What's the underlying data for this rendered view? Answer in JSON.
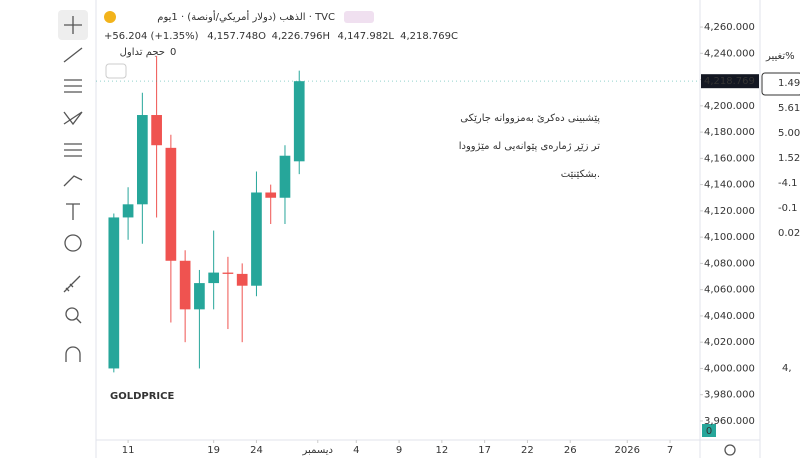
{
  "chart_data": {
    "type": "candlestick",
    "title": "الذهب (دولار أمريكي/أونصة) · 1يوم · TVC",
    "change": "+56.204 (+1.35%)",
    "ohlc_labels": [
      "4,218.769C",
      "4,147.982L",
      "4,226.796H",
      "4,157.748O"
    ],
    "volume_label": "حجم تداول",
    "volume_value": "0",
    "annotation": [
      "پێشبینی دەکرێ بەمزووانە جارێکی",
      "تر زێڕ ژمارەی پێوانەیی لە مێژوودا",
      "بشکێنێت."
    ],
    "watermark": "GOLDPRICE",
    "last_price_label": "4,218.769",
    "volume_axis_label": "0",
    "x": [
      0,
      1,
      2,
      3,
      4,
      5,
      6,
      7,
      8,
      9,
      10,
      11,
      12,
      13
    ],
    "open": [
      4000,
      4115,
      4125,
      4193,
      4168,
      4082,
      4045,
      4065,
      4073,
      4072,
      4063,
      4134,
      4130,
      4157.748
    ],
    "high": [
      4118,
      4138,
      4210,
      4238,
      4178,
      4090,
      4075,
      4105,
      4085,
      4080,
      4150,
      4140,
      4170,
      4226.796
    ],
    "low": [
      3997,
      4098,
      4095,
      4115,
      4035,
      4020,
      4000,
      4045,
      4030,
      4020,
      4055,
      4110,
      4110,
      4147.982
    ],
    "close": [
      4115,
      4125,
      4193,
      4170,
      4082,
      4045,
      4065,
      4073,
      4072,
      4063,
      4134,
      4130,
      4162,
      4218.769
    ],
    "up_color": "#26a69a",
    "down_color": "#ef5350",
    "xlim": [
      -1.25,
      41.1
    ],
    "xticks": [
      {
        "value": 1,
        "label": "11"
      },
      {
        "value": 7,
        "label": "19"
      },
      {
        "value": 10,
        "label": "24"
      },
      {
        "value": 14.3,
        "label": "ديسمبر"
      },
      {
        "value": 17,
        "label": "4"
      },
      {
        "value": 20,
        "label": "9"
      },
      {
        "value": 23,
        "label": "12"
      },
      {
        "value": 26,
        "label": "17"
      },
      {
        "value": 29,
        "label": "22"
      },
      {
        "value": 32,
        "label": "26"
      },
      {
        "value": 36,
        "label": "2026"
      },
      {
        "value": 39,
        "label": "7"
      }
    ],
    "ylim": [
      3945.5,
      4280.6
    ],
    "yticks": [
      {
        "value": 3960,
        "label": "3,960.000"
      },
      {
        "value": 3980,
        "label": "3,980.000"
      },
      {
        "value": 4000,
        "label": "4,000.000"
      },
      {
        "value": 4020,
        "label": "4,020.000"
      },
      {
        "value": 4040,
        "label": "4,040.000"
      },
      {
        "value": 4060,
        "label": "4,060.000"
      },
      {
        "value": 4080,
        "label": "4,080.000"
      },
      {
        "value": 4100,
        "label": "4,100.000"
      },
      {
        "value": 4120,
        "label": "4,120.000"
      },
      {
        "value": 4140,
        "label": "4,140.000"
      },
      {
        "value": 4160,
        "label": "4,160.000"
      },
      {
        "value": 4180,
        "label": "4,180.000"
      },
      {
        "value": 4200,
        "label": "4,200.000"
      },
      {
        "value": 4220,
        "label": "4,220.000"
      },
      {
        "value": 4240,
        "label": "4,240.000"
      },
      {
        "value": 4260,
        "label": "4,260.000"
      }
    ]
  },
  "side_panel": {
    "header": "تغيير%",
    "values": [
      "1.49",
      "5.61",
      "5.00",
      "1.52",
      "-4.1",
      "-0.1",
      "0.02"
    ],
    "big": "4,"
  }
}
